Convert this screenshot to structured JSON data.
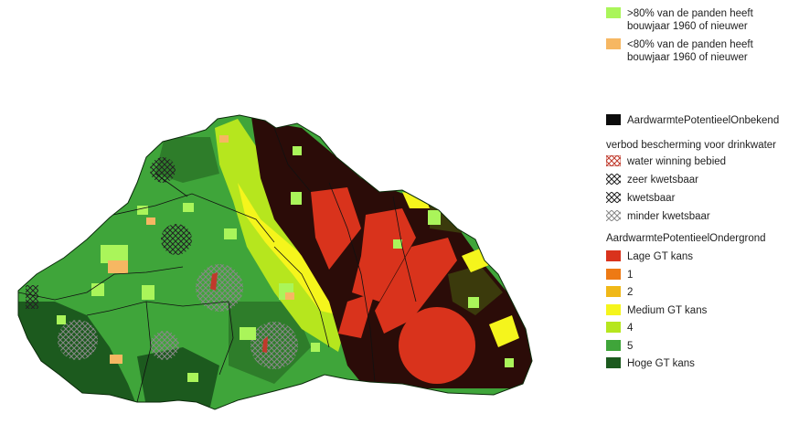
{
  "legend": {
    "building_age": [
      {
        "label": ">80% van de panden heeft bouwjaar 1960 of nieuwer",
        "line1": ">80% van de panden heeft",
        "line2": "bouwjaar 1960 of nieuwer",
        "color": "#aaf55a"
      },
      {
        "label": "<80% van de panden heeft bouwjaar 1960 of nieuwer",
        "line1": "<80% van de panden heeft",
        "line2": "bouwjaar 1960 of nieuwer",
        "color": "#f6b762"
      }
    ],
    "unknown": {
      "label": "AardwarmtePotentieelOnbekend",
      "color": "#0c0c0c"
    },
    "protection": {
      "title": "verbod bescherming voor drinkwater",
      "items": [
        {
          "label": "water winning bebied",
          "color": "#c0392b",
          "pattern": "cross-hatch"
        },
        {
          "label": "zeer kwetsbaar",
          "color": "#333333",
          "pattern": "cross-hatch"
        },
        {
          "label": "kwetsbaar",
          "color": "#555555",
          "pattern": "cross-hatch"
        },
        {
          "label": "minder kwetsbaar",
          "color": "#999999",
          "pattern": "cross-hatch"
        }
      ]
    },
    "subsurface": {
      "title": "AardwarmtePotentieelOndergrond",
      "items": [
        {
          "label": "Lage GT kans",
          "color": "#d9331c"
        },
        {
          "label": "1",
          "color": "#ee7a14"
        },
        {
          "label": "2",
          "color": "#f0b818"
        },
        {
          "label": "Medium GT kans",
          "color": "#f5f51c"
        },
        {
          "label": "4",
          "color": "#b6e61e"
        },
        {
          "label": "5",
          "color": "#3fa53a"
        },
        {
          "label": "Hoge GT kans",
          "color": "#1c5a1e"
        }
      ]
    }
  },
  "map_colors": {
    "unknown": "#2b0c08",
    "lage": "#d9331c",
    "medium": "#f5f51c",
    "four": "#b6e61e",
    "five": "#3fa53a",
    "hoge": "#1c5a1e",
    "olive": "#3b3a0c",
    "new_buildings": "#aaf55a",
    "old_buildings": "#f6b762"
  }
}
